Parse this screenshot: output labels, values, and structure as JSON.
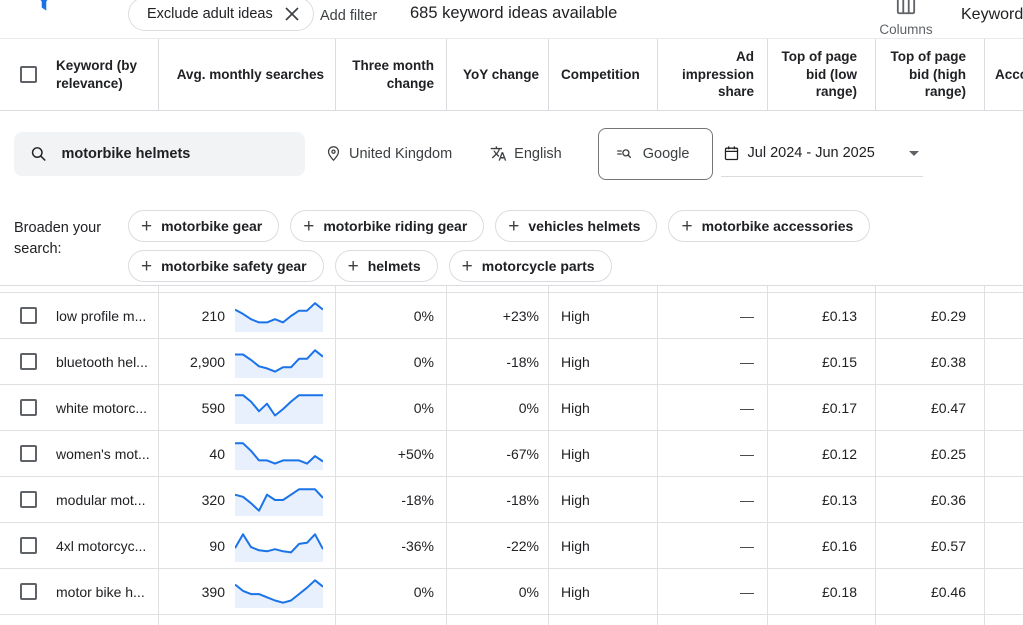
{
  "toolbar": {
    "filter_chip_label": "Exclude adult ideas",
    "add_filter_label": "Add filter",
    "ideas_count": "685 keyword ideas available",
    "columns_label": "Columns",
    "keyword_view_cut": "Keyword"
  },
  "controls": {
    "search_value": "motorbike helmets",
    "location": "United Kingdom",
    "language": "English",
    "network": "Google",
    "date_range": "Jul 2024 - Jun 2025"
  },
  "broaden": {
    "label": "Broaden your search:",
    "chips": [
      "motorbike gear",
      "motorbike riding gear",
      "vehicles helmets",
      "motorbike accessories",
      "motorbike safety gear",
      "helmets",
      "motorcycle parts"
    ]
  },
  "table": {
    "headers": [
      "Keyword (by relevance)",
      "Avg. monthly searches",
      "Three month change",
      "YoY change",
      "Competition",
      "Ad impression share",
      "Top of page bid (low range)",
      "Top of page bid (high range)",
      "Acco"
    ],
    "rows": [
      {
        "keyword": "low profile m...",
        "avg_monthly_searches": "210",
        "three_month_change": "0%",
        "yoy_change": "+23%",
        "competition": "High",
        "ad_impression_share": "—",
        "top_bid_low": "£0.13",
        "top_bid_high": "£0.29",
        "spark": [
          9,
          13,
          18,
          21,
          21,
          18,
          21,
          15,
          10,
          10,
          3,
          9
        ]
      },
      {
        "keyword": "bluetooth hel...",
        "avg_monthly_searches": "2,900",
        "three_month_change": "0%",
        "yoy_change": "-18%",
        "competition": "High",
        "ad_impression_share": "—",
        "top_bid_low": "£0.15",
        "top_bid_high": "£0.38",
        "spark": [
          8,
          8,
          13,
          19,
          21,
          24,
          20,
          20,
          12,
          12,
          4,
          10
        ]
      },
      {
        "keyword": "white motorc...",
        "avg_monthly_searches": "590",
        "three_month_change": "0%",
        "yoy_change": "0%",
        "competition": "High",
        "ad_impression_share": "—",
        "top_bid_low": "£0.17",
        "top_bid_high": "£0.47",
        "spark": [
          3,
          3,
          9,
          18,
          11,
          22,
          16,
          9,
          3,
          3,
          3,
          3
        ]
      },
      {
        "keyword": "women's mot...",
        "avg_monthly_searches": "40",
        "three_month_change": "+50%",
        "yoy_change": "-67%",
        "competition": "High",
        "ad_impression_share": "—",
        "top_bid_low": "£0.12",
        "top_bid_high": "£0.25",
        "spark": [
          5,
          5,
          12,
          21,
          21,
          24,
          21,
          21,
          21,
          24,
          17,
          22
        ]
      },
      {
        "keyword": "modular mot...",
        "avg_monthly_searches": "320",
        "three_month_change": "-18%",
        "yoy_change": "-18%",
        "competition": "High",
        "ad_impression_share": "—",
        "top_bid_low": "£0.13",
        "top_bid_high": "£0.36",
        "spark": [
          10,
          12,
          18,
          25,
          10,
          15,
          15,
          10,
          5,
          5,
          5,
          13
        ]
      },
      {
        "keyword": "4xl motorcyc...",
        "avg_monthly_searches": "90",
        "three_month_change": "-36%",
        "yoy_change": "-22%",
        "competition": "High",
        "ad_impression_share": "—",
        "top_bid_low": "£0.16",
        "top_bid_high": "£0.57",
        "spark": [
          17,
          4,
          16,
          19,
          20,
          18,
          20,
          21,
          13,
          12,
          4,
          18
        ]
      },
      {
        "keyword": "motor bike h...",
        "avg_monthly_searches": "390",
        "three_month_change": "0%",
        "yoy_change": "0%",
        "competition": "High",
        "ad_impression_share": "—",
        "top_bid_low": "£0.18",
        "top_bid_high": "£0.46",
        "spark": [
          8,
          14,
          17,
          17,
          20,
          23,
          25,
          23,
          17,
          11,
          4,
          10
        ]
      }
    ]
  },
  "colors": {
    "accent_blue": "#1a73e8",
    "spark_fill": "#e8f0fe",
    "header_border": "#dadce0",
    "row_border": "#e0e0e0",
    "text_primary": "#202124",
    "text_secondary": "#5f6368"
  }
}
